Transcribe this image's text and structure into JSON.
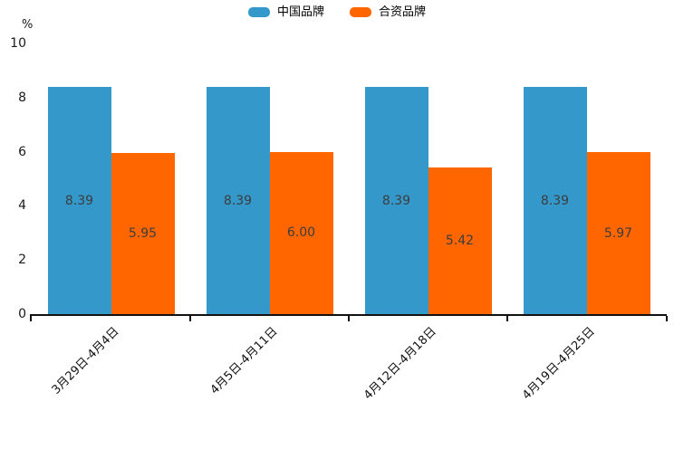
{
  "chart_data": {
    "type": "bar",
    "title": "",
    "xlabel": "",
    "ylabel": "%",
    "categories": [
      "3月29日-4月4日",
      "4月5日-4月11日",
      "4月12日-4月18日",
      "4月19日-4月25日"
    ],
    "series": [
      {
        "name": "中国品牌",
        "color": "#3498CB",
        "values": [
          8.39,
          8.39,
          8.39,
          8.39
        ]
      },
      {
        "name": "合资品牌",
        "color": "#FF6600",
        "values": [
          5.95,
          6.0,
          5.42,
          5.97
        ]
      }
    ],
    "value_label_decimals": 2,
    "ylim": [
      0,
      10
    ],
    "yticks": [
      0,
      2,
      4,
      6,
      8,
      10
    ],
    "grid": false,
    "legend_position": "top-center",
    "x_tick_style": "category-boundaries",
    "x_label_rotation_deg": 45,
    "colors": {
      "background": "#FFFFFF",
      "axis": "#111111",
      "tick_text": "#1a1a1a",
      "value_text": "#3d3d3d"
    }
  }
}
